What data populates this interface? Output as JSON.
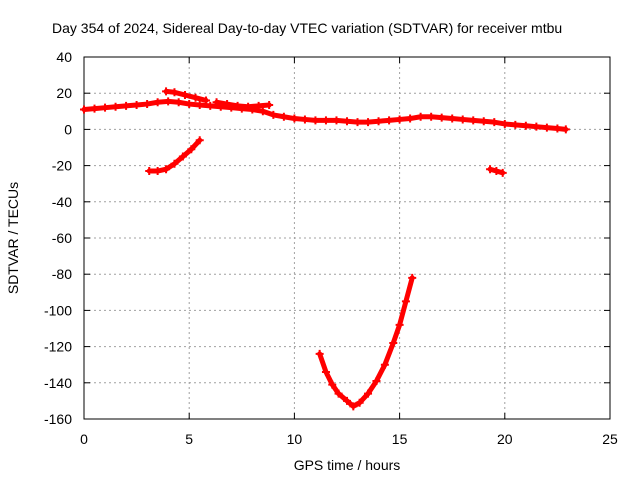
{
  "chart_data": {
    "type": "scatter",
    "title": "Day 354 of 2024, Sidereal Day-to-day VTEC variation (SDTVAR) for receiver mtbu",
    "xlabel": "GPS time / hours",
    "ylabel": "SDTVAR / TECUs",
    "xlim": [
      0,
      25
    ],
    "ylim": [
      -160,
      40
    ],
    "xticks": [
      0,
      5,
      10,
      15,
      20,
      25
    ],
    "yticks": [
      40,
      20,
      0,
      -20,
      -40,
      -60,
      -80,
      -100,
      -120,
      -140,
      -160
    ],
    "grid": true,
    "series_color": "#ff0000",
    "series": [
      {
        "name": "main-track",
        "points": [
          [
            0.0,
            11
          ],
          [
            0.5,
            11.5
          ],
          [
            1.0,
            12
          ],
          [
            1.5,
            12.5
          ],
          [
            2.0,
            13
          ],
          [
            2.5,
            13.5
          ],
          [
            3.0,
            14
          ],
          [
            3.5,
            15
          ],
          [
            4.0,
            15.5
          ],
          [
            4.5,
            15
          ],
          [
            5.0,
            14
          ],
          [
            5.5,
            13.5
          ],
          [
            6.0,
            13
          ],
          [
            6.5,
            12.5
          ],
          [
            7.0,
            12
          ],
          [
            7.5,
            11.5
          ],
          [
            8.0,
            11
          ],
          [
            8.5,
            10
          ],
          [
            9.0,
            8
          ],
          [
            9.5,
            7
          ],
          [
            10.0,
            6
          ],
          [
            10.5,
            5.5
          ],
          [
            11.0,
            5
          ],
          [
            11.5,
            5
          ],
          [
            12.0,
            5
          ],
          [
            12.5,
            4.5
          ],
          [
            13.0,
            4
          ],
          [
            13.5,
            4
          ],
          [
            14.0,
            4.5
          ],
          [
            14.5,
            5
          ],
          [
            15.0,
            5.5
          ],
          [
            15.5,
            6
          ],
          [
            16.0,
            7
          ],
          [
            16.5,
            7
          ],
          [
            17.0,
            6.5
          ],
          [
            17.5,
            6
          ],
          [
            18.0,
            5.5
          ],
          [
            18.5,
            5
          ],
          [
            19.0,
            4.5
          ],
          [
            19.5,
            4
          ],
          [
            20.0,
            3
          ],
          [
            20.5,
            2.5
          ],
          [
            21.0,
            2
          ],
          [
            21.5,
            1.5
          ],
          [
            22.0,
            1
          ],
          [
            22.5,
            0.5
          ],
          [
            22.9,
            0
          ]
        ]
      },
      {
        "name": "upper-arc",
        "points": [
          [
            3.9,
            21
          ],
          [
            4.3,
            20.5
          ],
          [
            4.8,
            19
          ],
          [
            5.3,
            17.5
          ],
          [
            5.8,
            16
          ]
        ]
      },
      {
        "name": "upper-arc-2",
        "points": [
          [
            6.3,
            15
          ],
          [
            6.8,
            14
          ],
          [
            7.3,
            13
          ],
          [
            7.8,
            12.5
          ],
          [
            8.3,
            13
          ],
          [
            8.8,
            13.5
          ]
        ]
      },
      {
        "name": "falling-arc",
        "points": [
          [
            3.1,
            -23
          ],
          [
            3.5,
            -23
          ],
          [
            3.9,
            -22
          ],
          [
            4.3,
            -19
          ],
          [
            4.7,
            -15
          ],
          [
            5.1,
            -11
          ],
          [
            5.5,
            -6
          ]
        ]
      },
      {
        "name": "deep-dip",
        "points": [
          [
            11.2,
            -124
          ],
          [
            11.5,
            -134
          ],
          [
            11.8,
            -141
          ],
          [
            12.1,
            -146
          ],
          [
            12.5,
            -150
          ],
          [
            12.8,
            -153
          ],
          [
            13.1,
            -151
          ],
          [
            13.5,
            -146
          ],
          [
            13.9,
            -139
          ],
          [
            14.3,
            -130
          ],
          [
            14.7,
            -118
          ],
          [
            15.0,
            -108
          ],
          [
            15.3,
            -95
          ],
          [
            15.6,
            -82
          ]
        ]
      },
      {
        "name": "short-segment",
        "points": [
          [
            19.3,
            -22
          ],
          [
            19.6,
            -23
          ],
          [
            19.9,
            -24
          ]
        ]
      }
    ]
  }
}
